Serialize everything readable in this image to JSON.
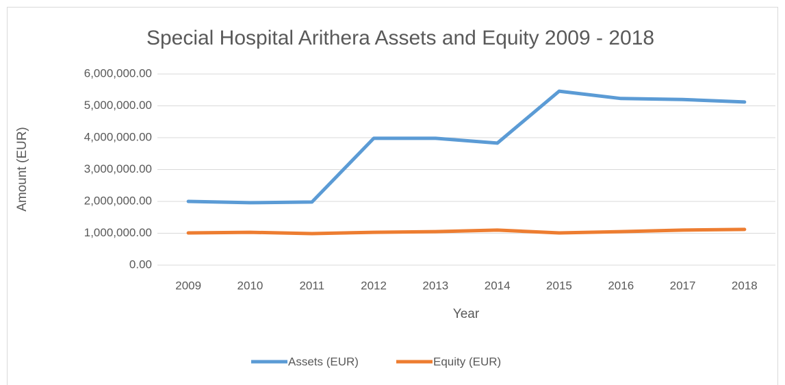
{
  "chart_data": {
    "type": "line",
    "title": "Special Hospital Arithera Assets and Equity 2009 - 2018",
    "x_label": "Year",
    "y_label": "Amount (EUR)",
    "categories": [
      "2009",
      "2010",
      "2011",
      "2012",
      "2013",
      "2014",
      "2015",
      "2016",
      "2017",
      "2018"
    ],
    "series": [
      {
        "name": "Assets (EUR)",
        "color": "#5b9bd5",
        "values": [
          2000000,
          1960000,
          1980000,
          3980000,
          3980000,
          3830000,
          5460000,
          5230000,
          5200000,
          5120000
        ]
      },
      {
        "name": "Equity (EUR)",
        "color": "#ed7d31",
        "values": [
          1010000,
          1030000,
          990000,
          1030000,
          1050000,
          1100000,
          1010000,
          1050000,
          1100000,
          1120000
        ]
      }
    ],
    "ylim": [
      0,
      6000000
    ],
    "yticks": [
      {
        "value": 0,
        "label": "0.00"
      },
      {
        "value": 1000000,
        "label": "1,000,000.00"
      },
      {
        "value": 2000000,
        "label": "2,000,000.00"
      },
      {
        "value": 3000000,
        "label": "3,000,000.00"
      },
      {
        "value": 4000000,
        "label": "4,000,000.00"
      },
      {
        "value": 5000000,
        "label": "5,000,000.00"
      },
      {
        "value": 6000000,
        "label": "6,000,000.00"
      }
    ],
    "grid": true,
    "legend": "bottom"
  }
}
